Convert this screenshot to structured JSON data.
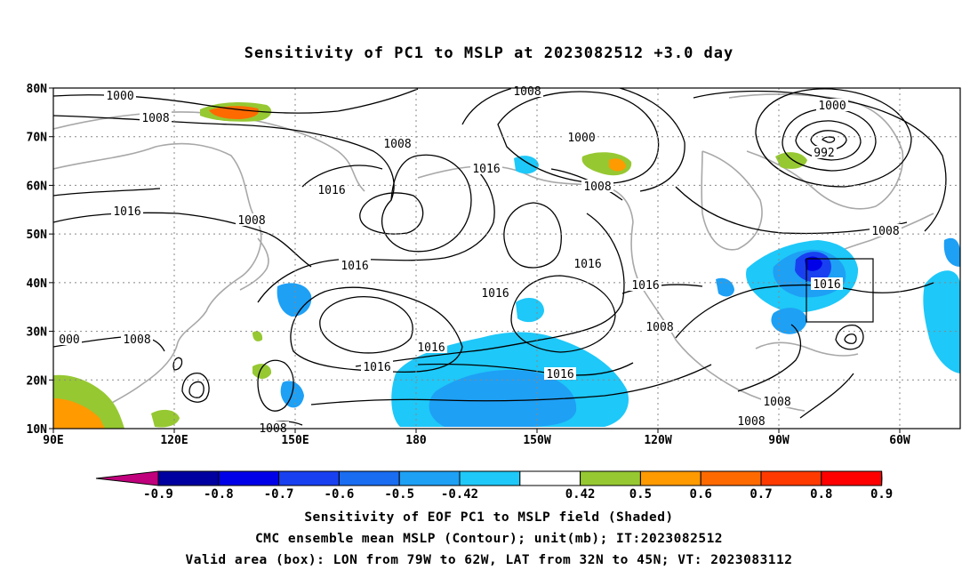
{
  "title": "Sensitivity of PC1 to MSLP at 2023082512 +3.0 day",
  "map": {
    "lat_labels": [
      "80N",
      "70N",
      "60N",
      "50N",
      "40N",
      "30N",
      "20N",
      "10N"
    ],
    "lon_labels": [
      "90E",
      "120E",
      "150E",
      "180",
      "150W",
      "120W",
      "90W",
      "60W"
    ],
    "lat_range": [
      10,
      80
    ],
    "lon_range": [
      90,
      315
    ],
    "grid": "dotted",
    "contour_labels": [
      "1000",
      "1008",
      "1008",
      "1016",
      "1016",
      "1008",
      "1016",
      "1016",
      "1016",
      "1016",
      "1016",
      "1016",
      "1008",
      "1000",
      "1016",
      "1016",
      "1008",
      "1000",
      "992",
      "1016",
      "1008",
      "1008",
      "1008",
      "1008",
      "1008",
      "000",
      "1008"
    ],
    "valid_box": {
      "lon_from_w": 79,
      "lon_to_w": 62,
      "lat_from": 32,
      "lat_to": 45
    }
  },
  "colorbar": {
    "labels": [
      "-0.9",
      "-0.8",
      "-0.7",
      "-0.6",
      "-0.5",
      "-0.42",
      "0.42",
      "0.5",
      "0.6",
      "0.7",
      "0.8",
      "0.9"
    ],
    "colors": [
      "#0000a0",
      "#0000e8",
      "#1840f0",
      "#1a6cf0",
      "#1ea0f5",
      "#1ec8f8",
      "#ffffff",
      "#96c832",
      "#ff9a00",
      "#ff6a00",
      "#ff3a00",
      "#ff0000"
    ],
    "end_low": "#c0007c",
    "end_high": "#ff9fd2"
  },
  "captions": [
    "Sensitivity of EOF PC1 to MSLP field (Shaded)",
    "CMC ensemble mean MSLP (Contour); unit(mb); IT:2023082512",
    "Valid area (box): LON from 79W to 62W, LAT from 32N to 45N; VT: 2023083112"
  ]
}
